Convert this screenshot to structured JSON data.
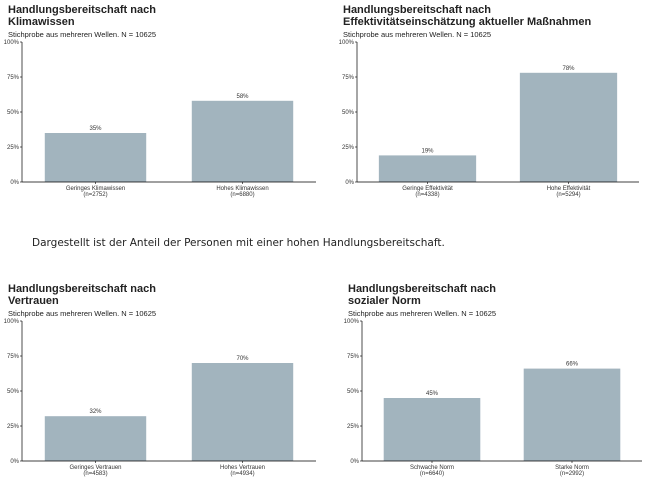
{
  "caption": "Dargestellt ist der Anteil der Personen mit einer hohen Handlungsbereitschaft.",
  "colors": {
    "bar": "#a2b4be",
    "axis": "#000000"
  },
  "chart_data": [
    {
      "type": "bar",
      "title": "Handlungsbereitschaft nach\nKlimawissen",
      "subtitle": "Stichprobe aus mehreren Wellen. N = 10625",
      "categories": [
        "Geringes Klimawissen",
        "Hohes Klimawissen"
      ],
      "counts": [
        "(n=2752)",
        "(n=6880)"
      ],
      "values": [
        35,
        58
      ],
      "ylim": [
        0,
        100
      ],
      "yticks": [
        "0%",
        "25%",
        "50%",
        "75%",
        "100%"
      ],
      "grid": false
    },
    {
      "type": "bar",
      "title": "Handlungsbereitschaft nach\nEffektivitätseinschätzung aktueller Maßnahmen",
      "subtitle": "Stichprobe aus mehreren Wellen. N = 10625",
      "categories": [
        "Geringe Effektivität",
        "Hohe Effektivität"
      ],
      "counts": [
        "(n=4338)",
        "(n=5294)"
      ],
      "values": [
        19,
        78
      ],
      "ylim": [
        0,
        100
      ],
      "yticks": [
        "0%",
        "25%",
        "50%",
        "75%",
        "100%"
      ],
      "grid": false
    },
    {
      "type": "bar",
      "title": "Handlungsbereitschaft nach\nVertrauen",
      "subtitle": "Stichprobe aus mehreren Wellen. N = 10625",
      "categories": [
        "Geringes Vertrauen",
        "Hohes Vertrauen"
      ],
      "counts": [
        "(n=4583)",
        "(n=4934)"
      ],
      "values": [
        32,
        70
      ],
      "ylim": [
        0,
        100
      ],
      "yticks": [
        "0%",
        "25%",
        "50%",
        "75%",
        "100%"
      ],
      "grid": false
    },
    {
      "type": "bar",
      "title": "Handlungsbereitschaft nach\nsozialer Norm",
      "subtitle": "Stichprobe aus mehreren Wellen. N = 10625",
      "categories": [
        "Schwache Norm",
        "Starke Norm"
      ],
      "counts": [
        "(n=6640)",
        "(n=2992)"
      ],
      "values": [
        45,
        66
      ],
      "ylim": [
        0,
        100
      ],
      "yticks": [
        "0%",
        "25%",
        "50%",
        "75%",
        "100%"
      ],
      "grid": false
    }
  ]
}
